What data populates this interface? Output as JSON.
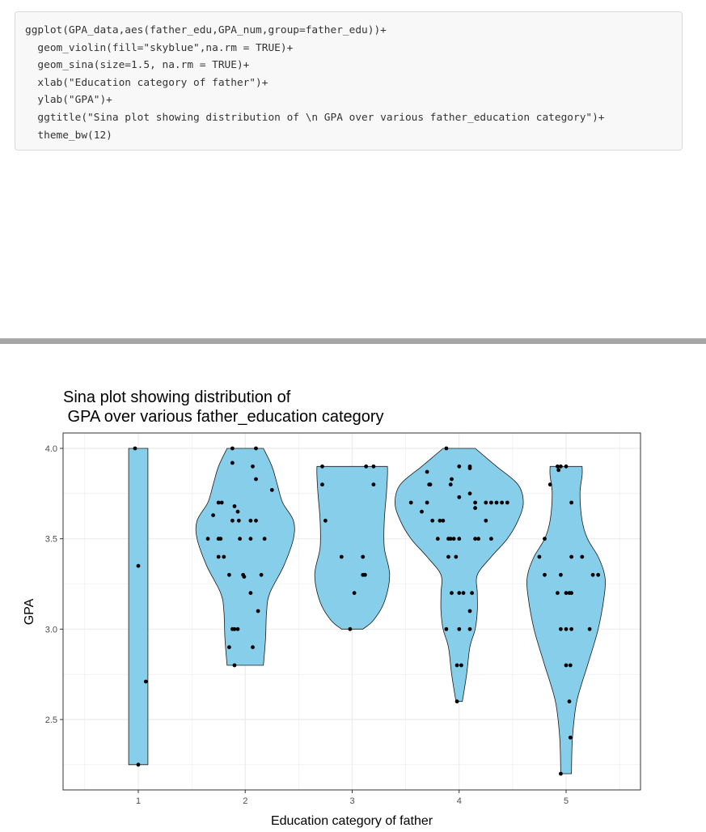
{
  "code": {
    "lines": [
      "ggplot(GPA_data,aes(father_edu,GPA_num,group=father_edu))+",
      "  geom_violin(fill=\"skyblue\",na.rm = TRUE)+",
      "  geom_sina(size=1.5, na.rm = TRUE)+",
      "  xlab(\"Education category of father\")+",
      "  ylab(\"GPA\")+",
      "  ggtitle(\"Sina plot showing distribution of \\n GPA over various father_education category\")+",
      "  theme_bw(12)"
    ]
  },
  "chart_data": {
    "type": "violin",
    "title": "Sina plot showing distribution of",
    "subtitle": " GPA over various father_education category",
    "xlabel": "Education category of father",
    "ylabel": "GPA",
    "categories": [
      "1",
      "2",
      "3",
      "4",
      "5"
    ],
    "ylim": [
      2.2,
      4.0
    ],
    "yticks": [
      "2.5",
      "3.0",
      "3.5",
      "4.0"
    ],
    "grid": true,
    "colors": {
      "fill": "#87ceeb",
      "point": "#000000",
      "grid": "#ebebeb",
      "border": "#333333"
    },
    "violins": [
      {
        "category": "1",
        "width_profile": [
          [
            2.25,
            0.09
          ],
          [
            4.0,
            0.09
          ]
        ]
      },
      {
        "category": "2",
        "width_profile": [
          [
            2.8,
            0.17
          ],
          [
            2.95,
            0.19
          ],
          [
            3.1,
            0.2
          ],
          [
            3.2,
            0.23
          ],
          [
            3.35,
            0.36
          ],
          [
            3.5,
            0.45
          ],
          [
            3.6,
            0.45
          ],
          [
            3.7,
            0.35
          ],
          [
            3.8,
            0.3
          ],
          [
            3.9,
            0.25
          ],
          [
            4.0,
            0.17
          ]
        ]
      },
      {
        "category": "3",
        "width_profile": [
          [
            3.0,
            0.1
          ],
          [
            3.05,
            0.2
          ],
          [
            3.15,
            0.3
          ],
          [
            3.3,
            0.35
          ],
          [
            3.45,
            0.3
          ],
          [
            3.6,
            0.3
          ],
          [
            3.75,
            0.32
          ],
          [
            3.85,
            0.33
          ],
          [
            3.9,
            0.33
          ]
        ]
      },
      {
        "category": "4",
        "width_profile": [
          [
            2.6,
            0.03
          ],
          [
            2.75,
            0.07
          ],
          [
            2.9,
            0.1
          ],
          [
            3.0,
            0.15
          ],
          [
            3.1,
            0.17
          ],
          [
            3.2,
            0.17
          ],
          [
            3.3,
            0.17
          ],
          [
            3.4,
            0.3
          ],
          [
            3.5,
            0.45
          ],
          [
            3.6,
            0.55
          ],
          [
            3.7,
            0.6
          ],
          [
            3.8,
            0.55
          ],
          [
            3.9,
            0.35
          ],
          [
            4.0,
            0.15
          ]
        ]
      },
      {
        "category": "5",
        "width_profile": [
          [
            2.2,
            0.05
          ],
          [
            2.4,
            0.06
          ],
          [
            2.6,
            0.1
          ],
          [
            2.8,
            0.2
          ],
          [
            3.0,
            0.3
          ],
          [
            3.2,
            0.36
          ],
          [
            3.3,
            0.36
          ],
          [
            3.4,
            0.3
          ],
          [
            3.5,
            0.2
          ],
          [
            3.6,
            0.15
          ],
          [
            3.75,
            0.13
          ],
          [
            3.85,
            0.15
          ],
          [
            3.9,
            0.15
          ]
        ]
      }
    ],
    "points": [
      {
        "category": "1",
        "values": [
          [
            -0.03,
            4.0
          ],
          [
            0.0,
            3.35
          ],
          [
            0.07,
            2.71
          ],
          [
            0.0,
            2.25
          ]
        ]
      },
      {
        "category": "2",
        "values": [
          [
            -0.12,
            4.0
          ],
          [
            0.1,
            4.0
          ],
          [
            -0.12,
            3.92
          ],
          [
            0.07,
            3.9
          ],
          [
            0.1,
            3.83
          ],
          [
            0.25,
            3.77
          ],
          [
            -0.25,
            3.7
          ],
          [
            -0.22,
            3.7
          ],
          [
            -0.1,
            3.68
          ],
          [
            -0.07,
            3.65
          ],
          [
            -0.3,
            3.63
          ],
          [
            -0.12,
            3.6
          ],
          [
            -0.06,
            3.6
          ],
          [
            0.05,
            3.6
          ],
          [
            0.1,
            3.6
          ],
          [
            -0.35,
            3.5
          ],
          [
            -0.25,
            3.5
          ],
          [
            -0.23,
            3.5
          ],
          [
            -0.05,
            3.5
          ],
          [
            0.05,
            3.5
          ],
          [
            0.18,
            3.5
          ],
          [
            -0.25,
            3.4
          ],
          [
            -0.2,
            3.4
          ],
          [
            -0.15,
            3.3
          ],
          [
            -0.02,
            3.3
          ],
          [
            -0.01,
            3.29
          ],
          [
            0.15,
            3.3
          ],
          [
            0.05,
            3.2
          ],
          [
            0.12,
            3.1
          ],
          [
            -0.12,
            3.0
          ],
          [
            -0.1,
            3.0
          ],
          [
            -0.07,
            3.0
          ],
          [
            -0.15,
            2.9
          ],
          [
            0.07,
            2.9
          ],
          [
            -0.1,
            2.8
          ]
        ]
      },
      {
        "category": "3",
        "values": [
          [
            -0.28,
            3.9
          ],
          [
            0.13,
            3.9
          ],
          [
            0.2,
            3.9
          ],
          [
            -0.28,
            3.8
          ],
          [
            0.2,
            3.8
          ],
          [
            -0.25,
            3.6
          ],
          [
            -0.1,
            3.4
          ],
          [
            0.1,
            3.4
          ],
          [
            0.1,
            3.3
          ],
          [
            0.12,
            3.3
          ],
          [
            0.02,
            3.2
          ],
          [
            -0.02,
            3.0
          ]
        ]
      },
      {
        "category": "4",
        "values": [
          [
            -0.12,
            4.0
          ],
          [
            0.0,
            3.9
          ],
          [
            0.1,
            3.9
          ],
          [
            0.1,
            3.89
          ],
          [
            -0.3,
            3.87
          ],
          [
            -0.27,
            3.8
          ],
          [
            -0.28,
            3.8
          ],
          [
            -0.07,
            3.83
          ],
          [
            -0.08,
            3.8
          ],
          [
            0.1,
            3.75
          ],
          [
            0.0,
            3.73
          ],
          [
            -0.45,
            3.7
          ],
          [
            -0.3,
            3.7
          ],
          [
            0.15,
            3.7
          ],
          [
            0.25,
            3.7
          ],
          [
            0.3,
            3.7
          ],
          [
            0.35,
            3.7
          ],
          [
            0.4,
            3.7
          ],
          [
            0.45,
            3.7
          ],
          [
            -0.35,
            3.65
          ],
          [
            -0.25,
            3.6
          ],
          [
            -0.18,
            3.6
          ],
          [
            -0.15,
            3.6
          ],
          [
            0.15,
            3.67
          ],
          [
            0.25,
            3.6
          ],
          [
            -0.2,
            3.5
          ],
          [
            -0.1,
            3.5
          ],
          [
            -0.08,
            3.5
          ],
          [
            -0.05,
            3.5
          ],
          [
            0.0,
            3.5
          ],
          [
            0.15,
            3.5
          ],
          [
            0.18,
            3.5
          ],
          [
            0.3,
            3.5
          ],
          [
            -0.1,
            3.4
          ],
          [
            -0.03,
            3.4
          ],
          [
            -0.07,
            3.2
          ],
          [
            0.0,
            3.2
          ],
          [
            0.04,
            3.2
          ],
          [
            0.12,
            3.2
          ],
          [
            0.1,
            3.1
          ],
          [
            -0.12,
            3.0
          ],
          [
            0.0,
            3.0
          ],
          [
            0.1,
            3.0
          ],
          [
            -0.02,
            2.8
          ],
          [
            0.02,
            2.8
          ],
          [
            -0.02,
            2.6
          ]
        ]
      },
      {
        "category": "5",
        "values": [
          [
            -0.08,
            3.9
          ],
          [
            -0.05,
            3.9
          ],
          [
            0.0,
            3.9
          ],
          [
            -0.07,
            3.88
          ],
          [
            -0.15,
            3.8
          ],
          [
            0.05,
            3.7
          ],
          [
            -0.2,
            3.5
          ],
          [
            -0.25,
            3.4
          ],
          [
            0.05,
            3.4
          ],
          [
            0.15,
            3.4
          ],
          [
            -0.2,
            3.3
          ],
          [
            -0.05,
            3.3
          ],
          [
            0.25,
            3.3
          ],
          [
            0.3,
            3.3
          ],
          [
            -0.08,
            3.2
          ],
          [
            0.0,
            3.2
          ],
          [
            0.03,
            3.2
          ],
          [
            0.05,
            3.2
          ],
          [
            -0.05,
            3.0
          ],
          [
            0.0,
            3.0
          ],
          [
            0.05,
            3.0
          ],
          [
            0.22,
            3.0
          ],
          [
            0.0,
            2.8
          ],
          [
            0.04,
            2.8
          ],
          [
            0.03,
            2.6
          ],
          [
            0.04,
            2.4
          ],
          [
            -0.05,
            2.2
          ]
        ]
      }
    ]
  }
}
